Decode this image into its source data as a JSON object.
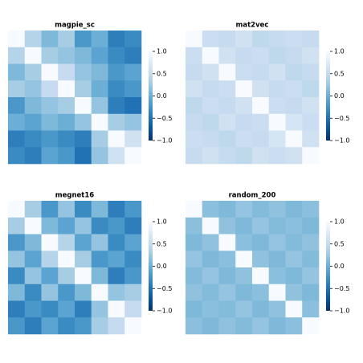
{
  "chart_data": [
    {
      "type": "heatmap",
      "title": "magpie_sc",
      "matrix": [
        [
          1,
          0.4,
          0.1,
          0.3,
          -0.2,
          0.0,
          -0.4,
          -0.3
        ],
        [
          0.4,
          1,
          0.3,
          0.2,
          0.1,
          -0.1,
          -0.3,
          -0.4
        ],
        [
          0.1,
          0.3,
          1,
          0.5,
          0.2,
          0.1,
          -0.2,
          -0.1
        ],
        [
          0.3,
          0.2,
          0.5,
          1,
          0.3,
          0.0,
          -0.3,
          -0.2
        ],
        [
          -0.2,
          0.1,
          0.2,
          0.3,
          1,
          0.2,
          -0.4,
          -0.5
        ],
        [
          0.0,
          -0.1,
          0.1,
          0.0,
          0.2,
          1,
          0.3,
          0.2
        ],
        [
          -0.4,
          -0.3,
          -0.2,
          -0.3,
          -0.4,
          0.3,
          1,
          0.6
        ],
        [
          -0.3,
          -0.4,
          -0.1,
          -0.2,
          -0.5,
          0.2,
          0.6,
          1
        ]
      ],
      "clim": [
        -1,
        1
      ],
      "cticks": [
        {
          "value": 1,
          "label": "1.0"
        },
        {
          "value": 0.5,
          "label": "0.5"
        },
        {
          "value": 0,
          "label": "0.0"
        },
        {
          "value": -0.5,
          "label": "−0.5"
        },
        {
          "value": -1,
          "label": "−1.0"
        }
      ],
      "colormap": [
        "#08306b",
        "#08519c",
        "#2171b5",
        "#4292c6",
        "#6baed6",
        "#9ecae1",
        "#c6dbef",
        "#deebf7",
        "#f7fbff"
      ]
    },
    {
      "type": "heatmap",
      "title": "mat2vec",
      "matrix": [
        [
          1,
          0.55,
          0.5,
          0.6,
          0.45,
          0.5,
          0.55,
          0.5
        ],
        [
          0.55,
          1,
          0.6,
          0.5,
          0.55,
          0.45,
          0.5,
          0.6
        ],
        [
          0.5,
          0.6,
          1,
          0.55,
          0.5,
          0.6,
          0.45,
          0.5
        ],
        [
          0.6,
          0.5,
          0.55,
          1,
          0.6,
          0.5,
          0.55,
          0.45
        ],
        [
          0.45,
          0.55,
          0.5,
          0.6,
          1,
          0.55,
          0.5,
          0.6
        ],
        [
          0.5,
          0.45,
          0.6,
          0.5,
          0.55,
          1,
          0.65,
          0.55
        ],
        [
          0.55,
          0.5,
          0.45,
          0.55,
          0.5,
          0.65,
          1,
          0.6
        ],
        [
          0.5,
          0.6,
          0.5,
          0.45,
          0.6,
          0.55,
          0.6,
          1
        ]
      ],
      "clim": [
        -1,
        1
      ],
      "cticks": [
        {
          "value": 1,
          "label": "1.0"
        },
        {
          "value": 0.5,
          "label": "0.5"
        },
        {
          "value": 0,
          "label": "0.0"
        },
        {
          "value": -0.5,
          "label": "−0.5"
        },
        {
          "value": -1,
          "label": "−1.0"
        }
      ],
      "colormap": [
        "#08306b",
        "#08519c",
        "#2171b5",
        "#4292c6",
        "#6baed6",
        "#9ecae1",
        "#c6dbef",
        "#deebf7",
        "#f7fbff"
      ]
    },
    {
      "type": "heatmap",
      "title": "megnet16",
      "matrix": [
        [
          1,
          0.3,
          -0.2,
          0.2,
          -0.3,
          0.1,
          -0.4,
          -0.2
        ],
        [
          0.3,
          1,
          0.1,
          -0.1,
          0.2,
          -0.3,
          -0.2,
          -0.4
        ],
        [
          -0.2,
          0.1,
          1,
          0.4,
          -0.1,
          0.2,
          -0.3,
          -0.1
        ],
        [
          0.2,
          -0.1,
          0.4,
          1,
          0.3,
          -0.2,
          -0.1,
          -0.3
        ],
        [
          -0.3,
          0.2,
          -0.1,
          0.3,
          1,
          0.1,
          -0.4,
          -0.2
        ],
        [
          0.1,
          -0.3,
          0.2,
          -0.2,
          0.1,
          1,
          0.2,
          0.3
        ],
        [
          -0.4,
          -0.2,
          -0.3,
          -0.1,
          -0.4,
          0.2,
          1,
          0.5
        ],
        [
          -0.2,
          -0.4,
          -0.1,
          -0.3,
          -0.2,
          0.3,
          0.5,
          1
        ]
      ],
      "clim": [
        -1,
        1
      ],
      "cticks": [
        {
          "value": 1,
          "label": "1.0"
        },
        {
          "value": 0.5,
          "label": "0.5"
        },
        {
          "value": 0,
          "label": "0.0"
        },
        {
          "value": -0.5,
          "label": "−0.5"
        },
        {
          "value": -1,
          "label": "−1.0"
        }
      ],
      "colormap": [
        "#08306b",
        "#08519c",
        "#2171b5",
        "#4292c6",
        "#6baed6",
        "#9ecae1",
        "#c6dbef",
        "#deebf7",
        "#f7fbff"
      ]
    },
    {
      "type": "heatmap",
      "title": "random_200",
      "matrix": [
        [
          1,
          0.15,
          0.1,
          0.2,
          0.12,
          0.18,
          0.1,
          0.15
        ],
        [
          0.15,
          1,
          0.18,
          0.1,
          0.2,
          0.12,
          0.15,
          0.1
        ],
        [
          0.1,
          0.18,
          1,
          0.15,
          0.1,
          0.2,
          0.12,
          0.18
        ],
        [
          0.2,
          0.1,
          0.15,
          1,
          0.18,
          0.1,
          0.2,
          0.12
        ],
        [
          0.12,
          0.2,
          0.1,
          0.18,
          1,
          0.15,
          0.1,
          0.2
        ],
        [
          0.18,
          0.12,
          0.2,
          0.1,
          0.15,
          1,
          0.18,
          0.1
        ],
        [
          0.1,
          0.15,
          0.12,
          0.2,
          0.1,
          0.18,
          1,
          0.15
        ],
        [
          0.15,
          0.1,
          0.18,
          0.12,
          0.2,
          0.1,
          0.15,
          1
        ]
      ],
      "clim": [
        -1,
        1
      ],
      "cticks": [
        {
          "value": 1,
          "label": "1.0"
        },
        {
          "value": 0.5,
          "label": "0.5"
        },
        {
          "value": 0,
          "label": "0.0"
        },
        {
          "value": -0.5,
          "label": "−0.5"
        },
        {
          "value": -1,
          "label": "−1.0"
        }
      ],
      "colormap": [
        "#08306b",
        "#08519c",
        "#2171b5",
        "#4292c6",
        "#6baed6",
        "#9ecae1",
        "#c6dbef",
        "#deebf7",
        "#f7fbff"
      ]
    }
  ]
}
